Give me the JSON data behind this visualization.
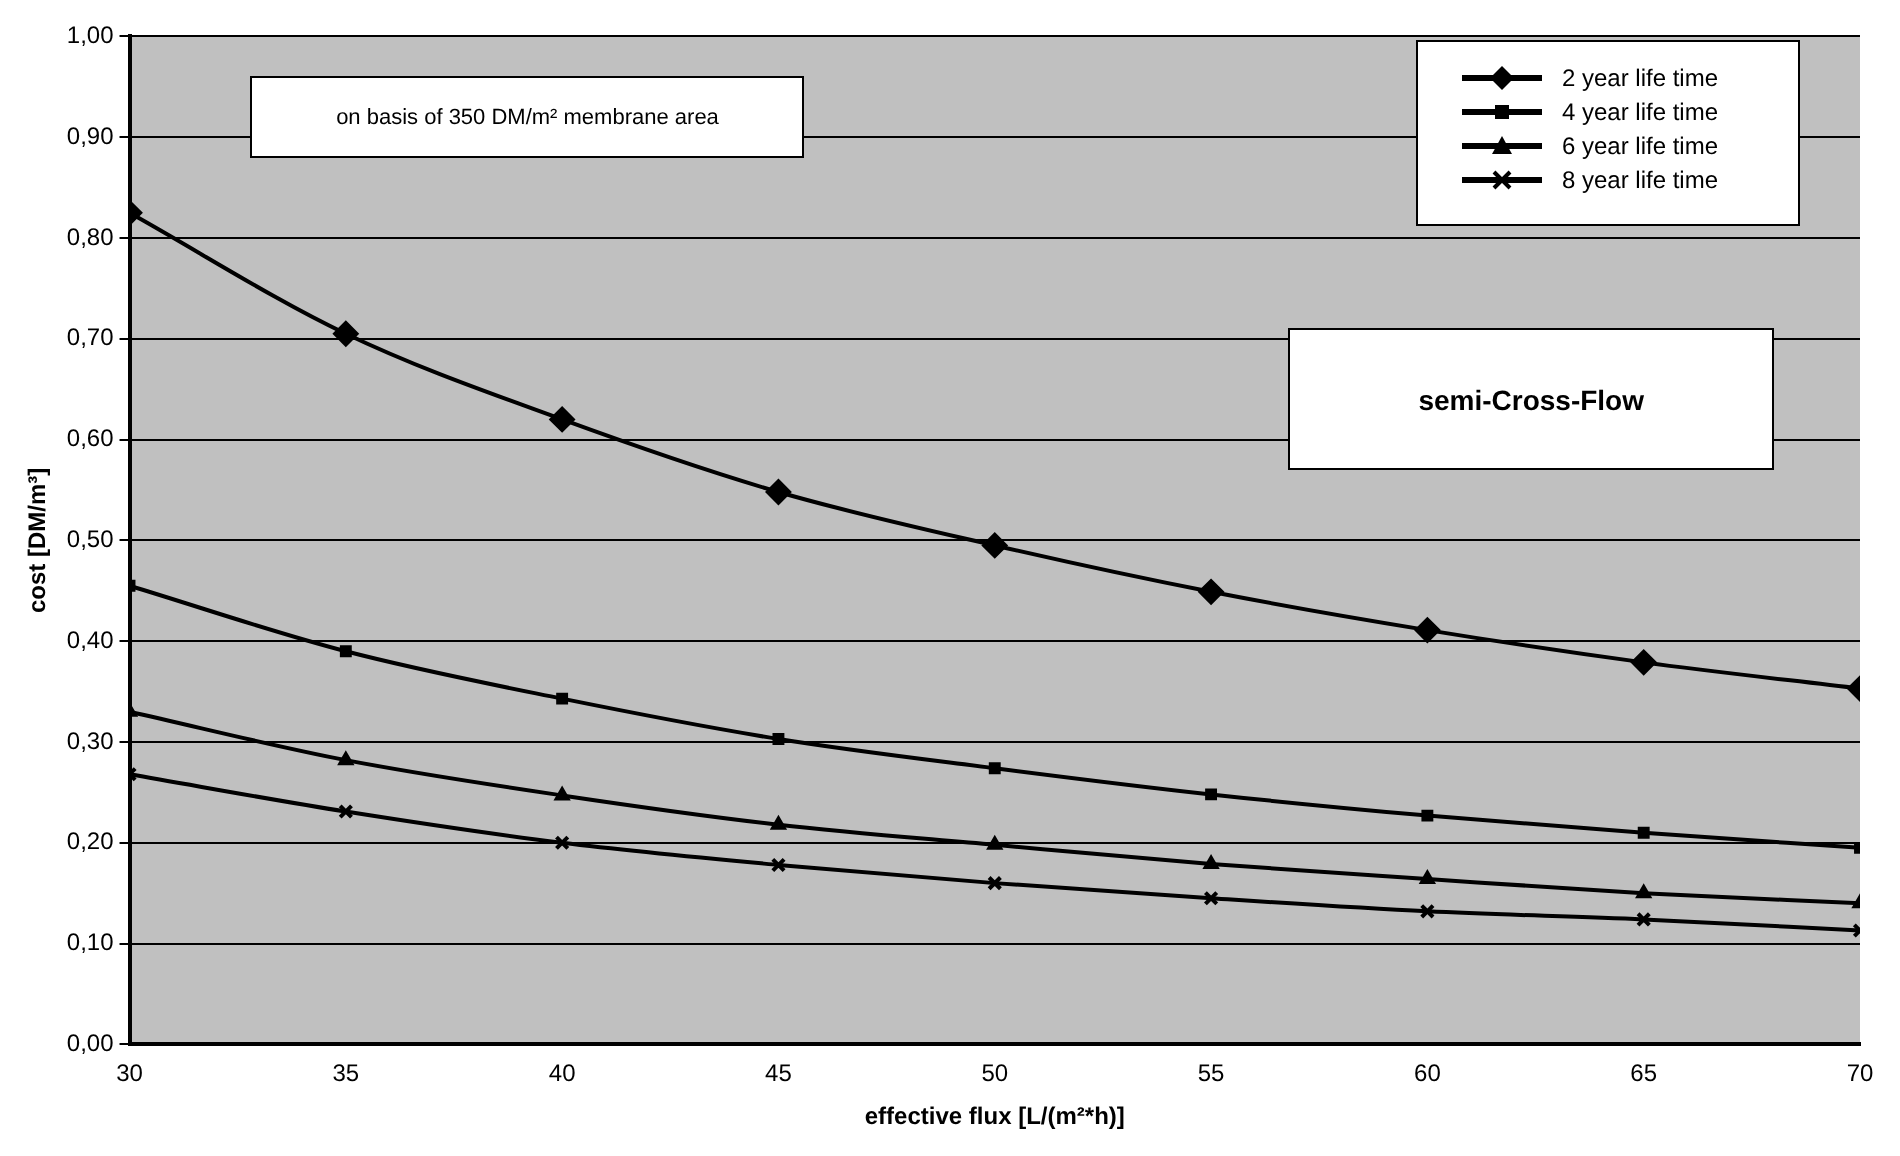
{
  "chart_data": {
    "type": "line",
    "xlabel": "effective flux [L/(m²*h)]",
    "ylabel": "cost [DM/m³]",
    "x": [
      30,
      35,
      40,
      45,
      50,
      55,
      60,
      65,
      70
    ],
    "series": [
      {
        "name": "2 year life time",
        "color": "#000000",
        "marker": "diamond",
        "values": [
          0.825,
          0.705,
          0.62,
          0.548,
          0.495,
          0.449,
          0.411,
          0.379,
          0.353
        ]
      },
      {
        "name": "4 year life time",
        "color": "#000000",
        "marker": "square",
        "values": [
          0.455,
          0.39,
          0.343,
          0.303,
          0.274,
          0.248,
          0.227,
          0.21,
          0.195
        ]
      },
      {
        "name": "6 year life time",
        "color": "#000000",
        "marker": "triangle",
        "values": [
          0.33,
          0.282,
          0.247,
          0.218,
          0.198,
          0.179,
          0.164,
          0.15,
          0.14
        ]
      },
      {
        "name": "8 year life time",
        "color": "#000000",
        "marker": "cross",
        "values": [
          0.268,
          0.231,
          0.2,
          0.178,
          0.16,
          0.145,
          0.132,
          0.124,
          0.113
        ]
      }
    ],
    "xlim": [
      30,
      70
    ],
    "xticks": [
      30,
      35,
      40,
      45,
      50,
      55,
      60,
      65,
      70
    ],
    "ylim": [
      0,
      1
    ],
    "yticks": [
      {
        "value": 0,
        "label": "0,00"
      },
      {
        "value": 0.1,
        "label": "0,10"
      },
      {
        "value": 0.2,
        "label": "0,20"
      },
      {
        "value": 0.3,
        "label": "0,30"
      },
      {
        "value": 0.4,
        "label": "0,40"
      },
      {
        "value": 0.5,
        "label": "0,50"
      },
      {
        "value": 0.6,
        "label": "0,60"
      },
      {
        "value": 0.7,
        "label": "0,70"
      },
      {
        "value": 0.8,
        "label": "0,80"
      },
      {
        "value": 0.9,
        "label": "0,90"
      },
      {
        "value": 1,
        "label": "1,00"
      }
    ],
    "grid": "y",
    "legend": "top right",
    "annotations": [
      "on basis of 350 DM/m² membrane area",
      "semi-Cross-Flow"
    ]
  }
}
